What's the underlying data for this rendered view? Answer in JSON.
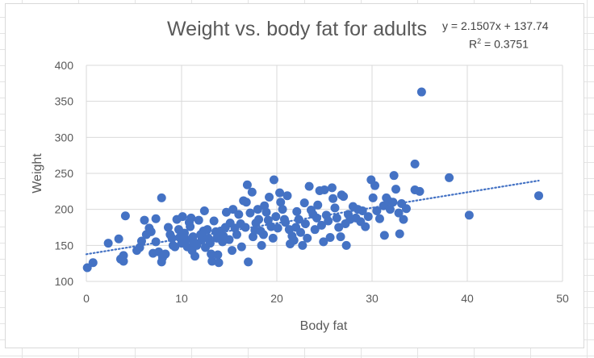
{
  "chart_data": {
    "type": "scatter",
    "title": "Weight vs. body fat for adults",
    "xlabel": "Body fat",
    "ylabel": "Weight",
    "xlim": [
      0,
      50
    ],
    "ylim": [
      100,
      400
    ],
    "x_ticks": [
      "0",
      "10",
      "20",
      "30",
      "40",
      "50"
    ],
    "y_ticks": [
      "100",
      "150",
      "200",
      "250",
      "300",
      "350",
      "400"
    ],
    "grid": true,
    "legend": "none",
    "trendline": {
      "type": "linear",
      "style": "dotted",
      "slope": 2.1507,
      "intercept": 137.74,
      "equation_text": "y = 2.1507x + 137.74",
      "r2_label": "R",
      "r2_value_text": " = 0.3751"
    },
    "marker_color": "#4472c4",
    "points": [
      [
        0.1,
        119
      ],
      [
        0.7,
        126
      ],
      [
        2.3,
        153
      ],
      [
        3.4,
        159
      ],
      [
        3.6,
        131
      ],
      [
        3.9,
        136
      ],
      [
        4.1,
        191
      ],
      [
        3.9,
        128
      ],
      [
        5.3,
        143
      ],
      [
        5.6,
        147
      ],
      [
        5.8,
        156
      ],
      [
        6.1,
        185
      ],
      [
        6.3,
        165
      ],
      [
        6.6,
        174
      ],
      [
        6.8,
        169
      ],
      [
        7.0,
        139
      ],
      [
        7.3,
        187
      ],
      [
        7.3,
        155
      ],
      [
        7.6,
        141
      ],
      [
        7.9,
        216
      ],
      [
        7.9,
        127
      ],
      [
        8.0,
        133
      ],
      [
        8.3,
        138
      ],
      [
        8.6,
        175
      ],
      [
        8.8,
        165
      ],
      [
        9.0,
        160
      ],
      [
        9.1,
        150
      ],
      [
        9.3,
        148
      ],
      [
        9.5,
        186
      ],
      [
        9.7,
        172
      ],
      [
        9.8,
        161
      ],
      [
        10.0,
        153
      ],
      [
        10.1,
        190
      ],
      [
        10.3,
        167
      ],
      [
        10.5,
        158
      ],
      [
        10.6,
        148
      ],
      [
        10.8,
        182
      ],
      [
        10.9,
        176
      ],
      [
        11.0,
        188
      ],
      [
        11.1,
        143
      ],
      [
        11.2,
        162
      ],
      [
        11.3,
        154
      ],
      [
        11.4,
        135
      ],
      [
        11.6,
        150
      ],
      [
        11.8,
        185
      ],
      [
        12.0,
        165
      ],
      [
        12.1,
        157
      ],
      [
        12.3,
        170
      ],
      [
        12.4,
        198
      ],
      [
        12.5,
        147
      ],
      [
        12.7,
        172
      ],
      [
        12.8,
        160
      ],
      [
        13.0,
        153
      ],
      [
        13.1,
        138
      ],
      [
        13.2,
        128
      ],
      [
        13.4,
        184
      ],
      [
        13.6,
        169
      ],
      [
        13.7,
        160
      ],
      [
        13.8,
        137
      ],
      [
        13.9,
        126
      ],
      [
        14.1,
        170
      ],
      [
        14.3,
        155
      ],
      [
        14.4,
        163
      ],
      [
        14.6,
        175
      ],
      [
        14.7,
        196
      ],
      [
        15.0,
        158
      ],
      [
        15.1,
        181
      ],
      [
        15.3,
        143
      ],
      [
        15.4,
        200
      ],
      [
        15.6,
        174
      ],
      [
        15.8,
        165
      ],
      [
        16.0,
        193
      ],
      [
        16.2,
        180
      ],
      [
        16.3,
        148
      ],
      [
        16.5,
        212
      ],
      [
        16.7,
        175
      ],
      [
        16.8,
        210
      ],
      [
        16.9,
        234
      ],
      [
        17.0,
        127
      ],
      [
        17.2,
        195
      ],
      [
        17.4,
        224
      ],
      [
        17.5,
        162
      ],
      [
        17.7,
        171
      ],
      [
        17.8,
        181
      ],
      [
        18.0,
        200
      ],
      [
        18.1,
        186
      ],
      [
        18.3,
        170
      ],
      [
        18.4,
        150
      ],
      [
        18.6,
        165
      ],
      [
        18.7,
        205
      ],
      [
        18.9,
        196
      ],
      [
        19.1,
        185
      ],
      [
        19.2,
        217
      ],
      [
        19.4,
        176
      ],
      [
        19.6,
        160
      ],
      [
        19.7,
        241
      ],
      [
        19.9,
        190
      ],
      [
        20.1,
        174
      ],
      [
        20.3,
        223
      ],
      [
        20.4,
        210
      ],
      [
        20.6,
        200
      ],
      [
        20.8,
        186
      ],
      [
        20.9,
        182
      ],
      [
        21.1,
        219
      ],
      [
        21.3,
        172
      ],
      [
        21.4,
        152
      ],
      [
        21.6,
        163
      ],
      [
        21.8,
        157
      ],
      [
        22.0,
        175
      ],
      [
        22.1,
        197
      ],
      [
        22.3,
        186
      ],
      [
        22.5,
        168
      ],
      [
        22.7,
        150
      ],
      [
        22.9,
        209
      ],
      [
        23.0,
        180
      ],
      [
        23.2,
        160
      ],
      [
        23.4,
        232
      ],
      [
        23.6,
        199
      ],
      [
        23.8,
        193
      ],
      [
        24.0,
        172
      ],
      [
        24.2,
        188
      ],
      [
        24.3,
        206
      ],
      [
        24.5,
        226
      ],
      [
        24.7,
        178
      ],
      [
        24.9,
        155
      ],
      [
        25.0,
        227
      ],
      [
        25.2,
        192
      ],
      [
        25.4,
        184
      ],
      [
        25.6,
        161
      ],
      [
        25.8,
        230
      ],
      [
        25.9,
        215
      ],
      [
        26.1,
        202
      ],
      [
        26.3,
        188
      ],
      [
        26.5,
        175
      ],
      [
        26.7,
        162
      ],
      [
        26.8,
        220
      ],
      [
        27.0,
        218
      ],
      [
        27.2,
        180
      ],
      [
        27.3,
        150
      ],
      [
        27.5,
        193
      ],
      [
        27.7,
        186
      ],
      [
        28.0,
        204
      ],
      [
        28.3,
        188
      ],
      [
        28.5,
        200
      ],
      [
        28.8,
        183
      ],
      [
        29.0,
        198
      ],
      [
        29.3,
        176
      ],
      [
        29.6,
        190
      ],
      [
        29.9,
        241
      ],
      [
        30.1,
        216
      ],
      [
        30.3,
        233
      ],
      [
        30.5,
        198
      ],
      [
        30.8,
        187
      ],
      [
        31.2,
        205
      ],
      [
        31.3,
        164
      ],
      [
        31.5,
        216
      ],
      [
        31.7,
        212
      ],
      [
        31.9,
        200
      ],
      [
        32.2,
        210
      ],
      [
        32.3,
        247
      ],
      [
        32.5,
        228
      ],
      [
        32.8,
        195
      ],
      [
        32.9,
        166
      ],
      [
        33.1,
        208
      ],
      [
        33.3,
        186
      ],
      [
        33.6,
        201
      ],
      [
        34.5,
        263
      ],
      [
        34.5,
        227
      ],
      [
        35.0,
        225
      ],
      [
        35.2,
        363
      ],
      [
        38.1,
        244
      ],
      [
        40.2,
        192
      ],
      [
        47.5,
        219
      ]
    ]
  }
}
